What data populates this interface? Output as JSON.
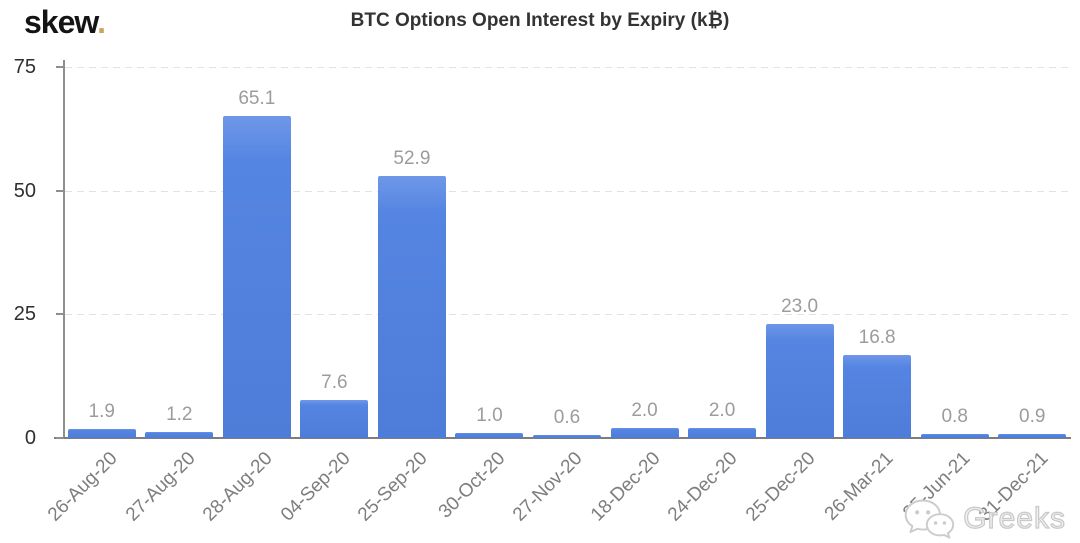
{
  "logo": {
    "brand": "skew",
    "dot": "."
  },
  "watermark": {
    "icon": "wechat-icon",
    "text": "Greeks"
  },
  "colors": {
    "bar": "#5585e2",
    "logo_dot": "#cba65a",
    "axis": "#8e8e8e",
    "grid": "#e2e2e2",
    "title_text": "#333333",
    "y_label": "#2f2f2f",
    "x_label": "#7e7e7e",
    "value_label": "#9c9c9c",
    "watermark": "#d9d9d9",
    "background": "#ffffff"
  },
  "chart_data": {
    "type": "bar",
    "title": "BTC Options Open Interest by Expiry (k₿)",
    "categories": [
      "26-Aug-20",
      "27-Aug-20",
      "28-Aug-20",
      "04-Sep-20",
      "25-Sep-20",
      "30-Oct-20",
      "27-Nov-20",
      "18-Dec-20",
      "24-Dec-20",
      "25-Dec-20",
      "26-Mar-21",
      "25-Jun-21",
      "31-Dec-21"
    ],
    "values": [
      1.9,
      1.2,
      65.1,
      7.6,
      52.9,
      1.0,
      0.6,
      2.0,
      2.0,
      23.0,
      16.8,
      0.8,
      0.9
    ],
    "value_labels": [
      "1.9",
      "1.2",
      "65.1",
      "7.6",
      "52.9",
      "1.0",
      "0.6",
      "2.0",
      "2.0",
      "23.0",
      "16.8",
      "0.8",
      "0.9"
    ],
    "xlabel": "",
    "ylabel": "",
    "ylim": [
      0,
      75
    ],
    "yticks": [
      0,
      25,
      50,
      75
    ],
    "grid": "horizontal-dashed",
    "legend": "none",
    "x_label_rotation_deg": -45,
    "bar_value_labels_shown": true
  }
}
